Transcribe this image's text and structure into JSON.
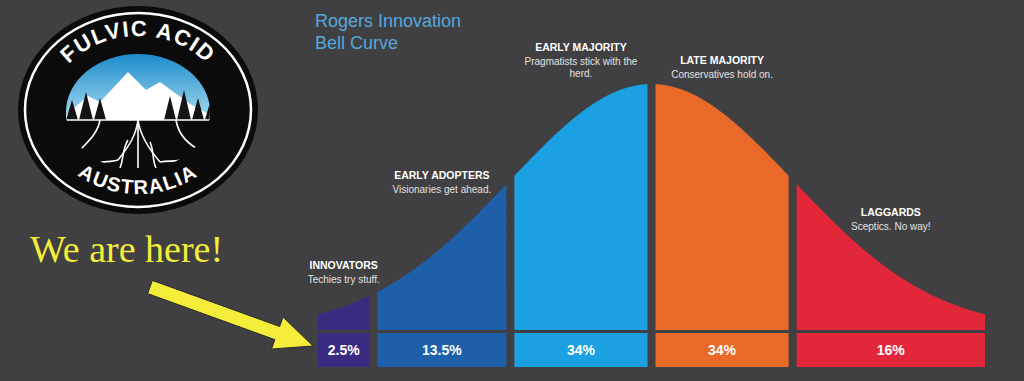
{
  "logo": {
    "top_text": "FULVIC ACID",
    "bottom_text": "AUSTRALIA"
  },
  "chart_data": {
    "type": "area",
    "title": "Rogers Innovation Bell Curve",
    "annotation": "We are here!",
    "categories": [
      "INNOVATORS",
      "EARLY ADOPTERS",
      "EARLY MAJORITY",
      "LATE MAJORITY",
      "LAGGARDS"
    ],
    "descriptions": [
      "Techies try stuff.",
      "Visionaries get ahead.",
      "Pragmatists stick with the herd.",
      "Conservatives hold on.",
      "Sceptics. No way!"
    ],
    "values": [
      2.5,
      13.5,
      34,
      34,
      16
    ],
    "value_labels": [
      "2.5%",
      "13.5%",
      "34%",
      "34%",
      "16%"
    ],
    "colors": [
      "#3a2a80",
      "#1d5fa8",
      "#1ba0e2",
      "#e96a28",
      "#e2273a"
    ],
    "data_labels": true,
    "tick_labels": false
  }
}
